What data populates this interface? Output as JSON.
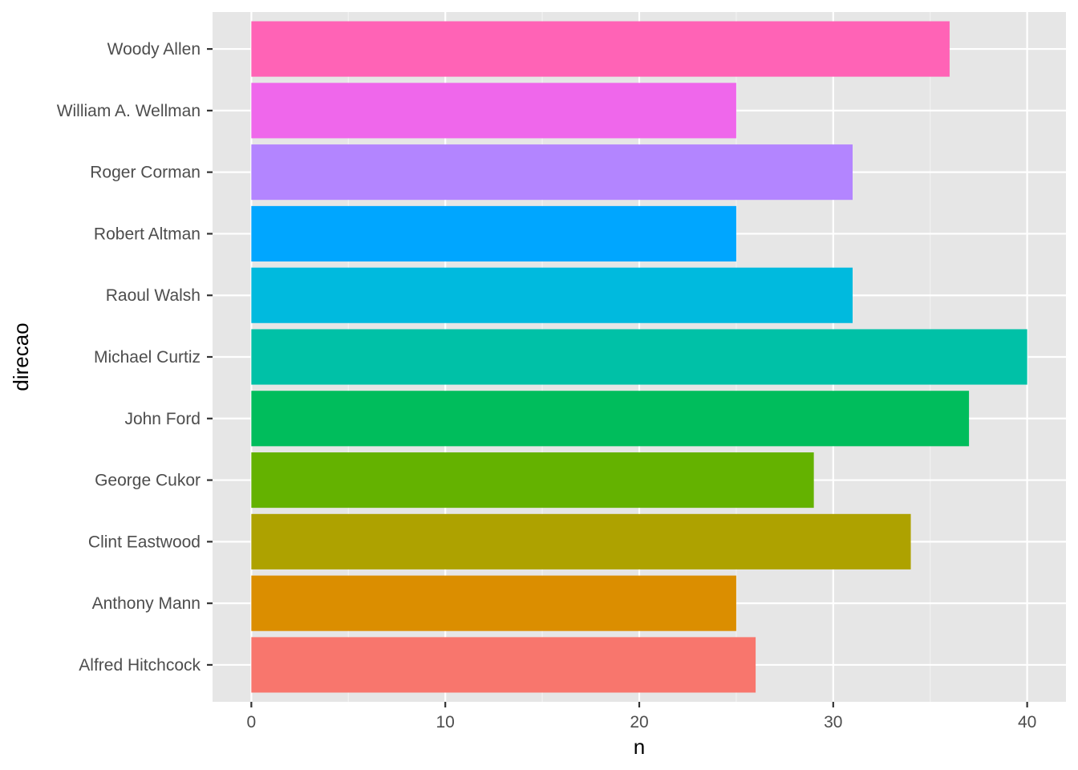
{
  "chart_data": {
    "type": "bar",
    "orientation": "horizontal",
    "xlabel": "n",
    "ylabel": "direcao",
    "xlim": [
      -2,
      42
    ],
    "x_ticks": [
      0,
      10,
      20,
      30,
      40
    ],
    "grid": true,
    "legend": "none",
    "categories": [
      "Alfred Hitchcock",
      "Anthony Mann",
      "Clint Eastwood",
      "George Cukor",
      "John Ford",
      "Michael Curtiz",
      "Raoul Walsh",
      "Robert Altman",
      "Roger Corman",
      "William A. Wellman",
      "Woody Allen"
    ],
    "values": [
      26,
      25,
      34,
      29,
      37,
      40,
      31,
      25,
      31,
      25,
      36
    ],
    "colors": [
      "#F8766D",
      "#DB8E00",
      "#AEA200",
      "#64B200",
      "#00BD5C",
      "#00C1A7",
      "#00BADE",
      "#00A6FF",
      "#B385FF",
      "#EF67EB",
      "#FF63B6"
    ],
    "panel_background": "#E6E6E6"
  }
}
